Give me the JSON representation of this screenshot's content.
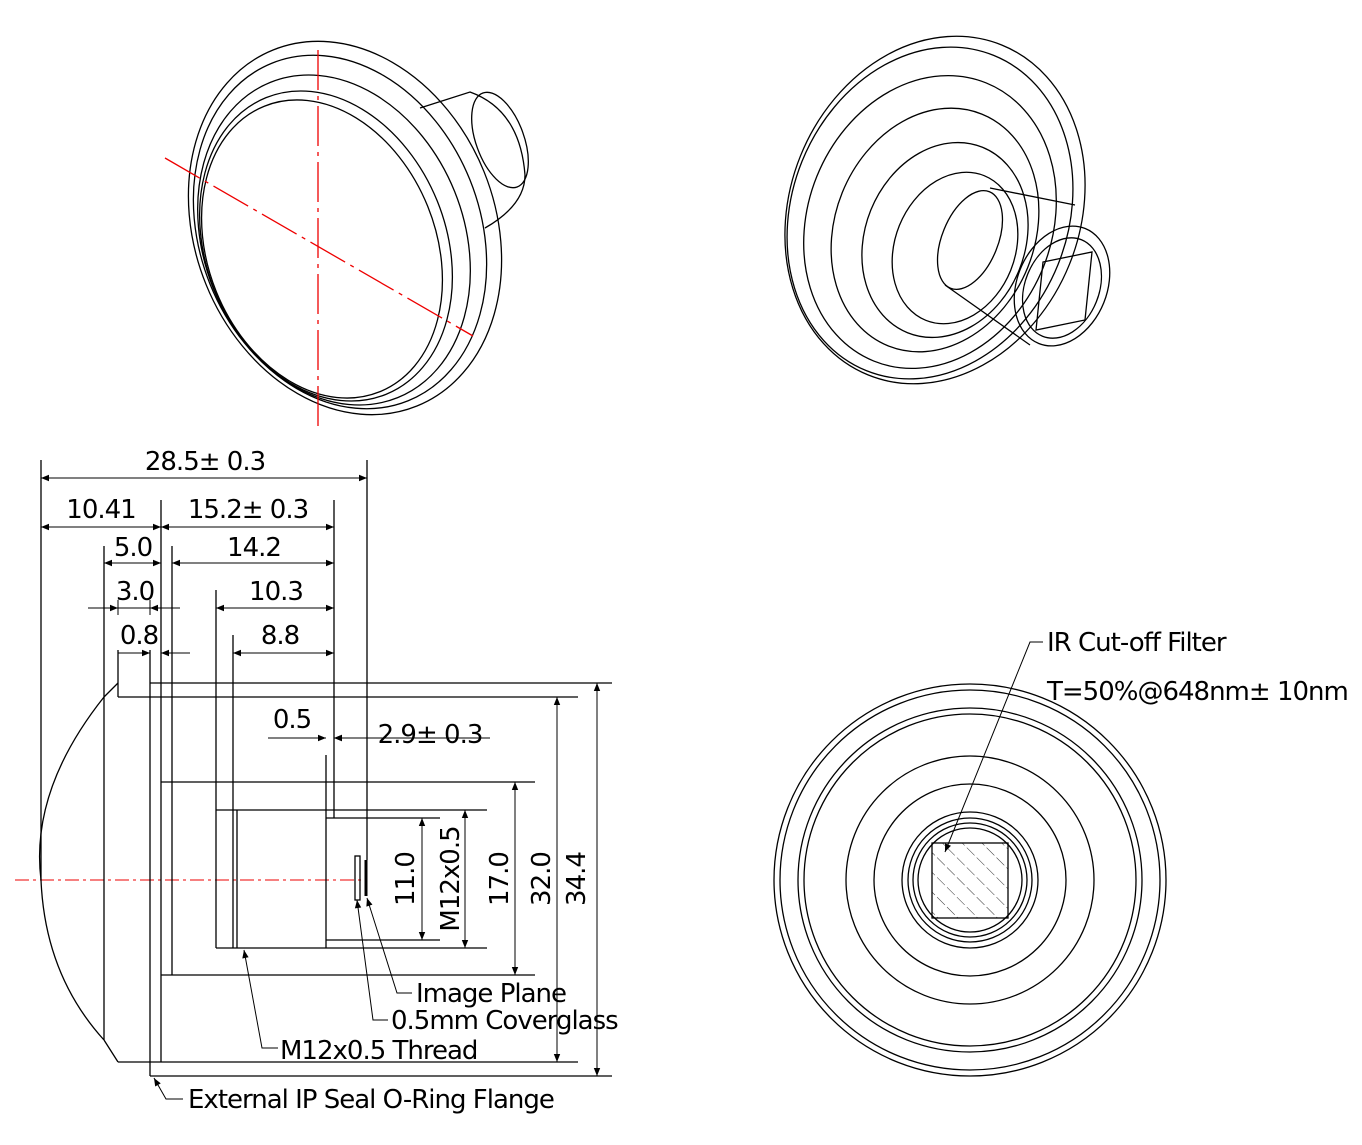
{
  "dimensions": {
    "overall_length": "28.5± 0.3",
    "flange_to_face": "10.41",
    "flange_to_image": "15.2± 0.3",
    "d_5_0": "5.0",
    "d_14_2": "14.2",
    "d_3_0": "3.0",
    "d_10_3": "10.3",
    "d_0_8": "0.8",
    "d_8_8": "8.8",
    "d_0_5": "0.5",
    "back_focal": "2.9± 0.3",
    "d_11_0": "11.0",
    "thread_dia": "M12x0.5",
    "d_17_0": "17.0",
    "d_32_0": "32.0",
    "d_34_4": "34.4"
  },
  "callouts": {
    "image_plane": "Image Plane",
    "coverglass": "0.5mm Coverglass",
    "thread": "M12x0.5 Thread",
    "oring": "External IP Seal O-Ring Flange",
    "ir_filter": "IR Cut-off Filter",
    "ir_spec": "T=50%@648nm± 10nm"
  },
  "colors": {
    "centerline": "#e00000",
    "lines": "#000000"
  }
}
